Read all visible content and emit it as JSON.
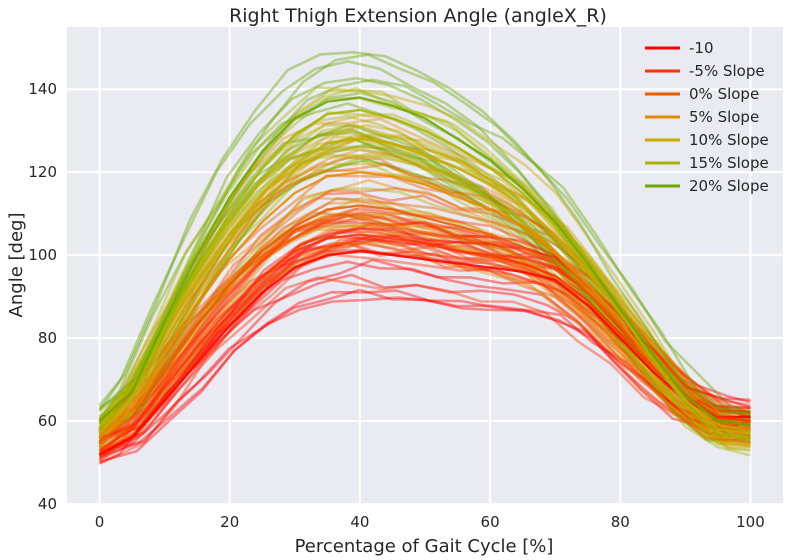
{
  "chart_data": {
    "type": "line",
    "title": "Right Thigh Extension Angle (angleX_R)",
    "xlabel": "Percentage of Gait Cycle [%]",
    "ylabel": "Angle [deg]",
    "xlim": [
      -5,
      105
    ],
    "ylim": [
      40,
      155
    ],
    "xticks": [
      0,
      20,
      40,
      60,
      80,
      100
    ],
    "yticks": [
      40,
      60,
      80,
      100,
      120,
      140
    ],
    "grid": true,
    "background": "#eaeaf2",
    "legend_position": "top-right",
    "x": [
      0,
      5,
      10,
      15,
      20,
      25,
      30,
      35,
      40,
      45,
      50,
      55,
      60,
      65,
      70,
      75,
      80,
      85,
      90,
      95,
      100
    ],
    "series": [
      {
        "name": "-10",
        "color": "#ff0000",
        "values": [
          52,
          56,
          65,
          74,
          83,
          91,
          97,
          100,
          101,
          100,
          99,
          98,
          97,
          96,
          94,
          88,
          80,
          72,
          65,
          61,
          61
        ]
      },
      {
        "name": "-5% Slope",
        "color": "#ff3300",
        "values": [
          53,
          58,
          68,
          78,
          87,
          95,
          101,
          104,
          105,
          104,
          103,
          101,
          100,
          98,
          95,
          89,
          81,
          73,
          66,
          61,
          60
        ]
      },
      {
        "name": "0% Slope",
        "color": "#e65c00",
        "values": [
          55,
          61,
          72,
          83,
          93,
          101,
          107,
          111,
          112,
          111,
          109,
          107,
          105,
          102,
          98,
          91,
          83,
          74,
          66,
          60,
          59
        ]
      },
      {
        "name": "5% Slope",
        "color": "#e68a00",
        "values": [
          56,
          63,
          76,
          88,
          99,
          108,
          115,
          119,
          120,
          119,
          117,
          114,
          111,
          107,
          101,
          93,
          84,
          74,
          65,
          59,
          58
        ]
      },
      {
        "name": "10% Slope",
        "color": "#c8aa00",
        "values": [
          57,
          65,
          79,
          93,
          105,
          115,
          122,
          127,
          128,
          127,
          124,
          121,
          117,
          112,
          105,
          96,
          86,
          75,
          65,
          58,
          57
        ]
      },
      {
        "name": "15% Slope",
        "color": "#a8b400",
        "values": [
          58,
          66,
          82,
          97,
          110,
          121,
          129,
          134,
          135,
          133,
          130,
          126,
          121,
          115,
          107,
          97,
          86,
          75,
          64,
          57,
          56
        ]
      },
      {
        "name": "20% Slope",
        "color": "#6aa800",
        "values": [
          60,
          67,
          84,
          100,
          114,
          125,
          133,
          137,
          138,
          136,
          133,
          128,
          123,
          116,
          108,
          98,
          87,
          76,
          66,
          60,
          59
        ]
      }
    ]
  }
}
